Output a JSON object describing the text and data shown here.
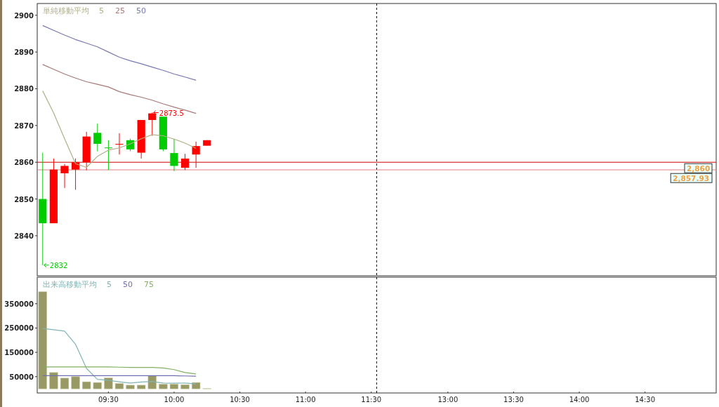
{
  "chart_data": [
    {
      "type": "candlestick",
      "legend_title": "単純移動平均",
      "legend": "top left",
      "categories": [
        null,
        null,
        null,
        null,
        null,
        null,
        null,
        null,
        null,
        null,
        null,
        null,
        null,
        null,
        null,
        null,
        null,
        null,
        null,
        null,
        null,
        null,
        null,
        null,
        null,
        null,
        null,
        null,
        null,
        null,
        null,
        null,
        null,
        null,
        null,
        null,
        null,
        null,
        null,
        null,
        null,
        null,
        null,
        null,
        null,
        null,
        null,
        null,
        null,
        null,
        null,
        null,
        null,
        null,
        null,
        null,
        null,
        null,
        null,
        null,
        null,
        null
      ],
      "ohlc": [
        [
          2850,
          2862.6,
          2832,
          2843.4
        ],
        [
          2843.4,
          2861,
          2843.4,
          2858
        ],
        [
          2857,
          2859.5,
          2853,
          2859
        ],
        [
          2858,
          2861,
          2852.5,
          2860
        ],
        [
          2860,
          2868.3,
          2857.8,
          2867
        ],
        [
          2868,
          2870.5,
          2863,
          2865
        ],
        [
          2864,
          2866,
          2857.9,
          2864
        ],
        [
          2864.8,
          2867.9,
          2862.1,
          2865
        ],
        [
          2866,
          2866.4,
          2863,
          2863.5
        ],
        [
          2862.6,
          2871.5,
          2861,
          2871.5
        ],
        [
          2871.5,
          2873.5,
          2867.2,
          2873.3
        ],
        [
          2872.4,
          2872.4,
          2863,
          2863.5
        ],
        [
          2862.5,
          2866.4,
          2857.6,
          2859
        ],
        [
          2858.5,
          2862.3,
          2857.9,
          2861
        ],
        [
          2862.1,
          2865.6,
          2858.5,
          2864.4
        ],
        [
          2864.5,
          2866,
          2864.5,
          2866
        ],
        null,
        null,
        null,
        null,
        null,
        null,
        null,
        null,
        null,
        null,
        null,
        null,
        null,
        null,
        null,
        null,
        null,
        null,
        null,
        null,
        null,
        null,
        null,
        null,
        null,
        null,
        null,
        null,
        null,
        null,
        null,
        null,
        null,
        null,
        null,
        null,
        null,
        null,
        null,
        null,
        null,
        null,
        null,
        null,
        null,
        null
      ],
      "colors": [
        "#00cc00",
        "#ff0000",
        "#ff0000",
        "#ff0000",
        "#ff0000",
        "#00cc00",
        "#00cc00",
        "#ff0000",
        "#00cc00",
        "#ff0000",
        "#ff0000",
        "#00cc00",
        "#00cc00",
        "#ff0000",
        "#ff0000",
        "#ff0000",
        null,
        null,
        null,
        null,
        null,
        null,
        null,
        null,
        null,
        null,
        null,
        null,
        null,
        null,
        null,
        null,
        null,
        null,
        null,
        null,
        null,
        null,
        null,
        null,
        null,
        null,
        null,
        null,
        null,
        null,
        null,
        null,
        null,
        null,
        null,
        null,
        null,
        null,
        null,
        null,
        null,
        null,
        null,
        null,
        null,
        null
      ],
      "series": [
        {
          "name": "5",
          "type": "line",
          "color": "#b0b088",
          "values": [
            2879.4,
            2873.4,
            2866.4,
            2859.6,
            2858.6,
            2861.6,
            2863.3,
            2863.9,
            2865,
            2866.4,
            2867.5,
            2867.2,
            2866.3,
            2865.2,
            2863.8,
            null,
            null,
            null,
            null,
            null,
            null,
            null,
            null,
            null,
            null,
            null,
            null,
            null,
            null,
            null,
            null,
            null,
            null,
            null,
            null,
            null,
            null,
            null,
            null,
            null,
            null,
            null,
            null,
            null,
            null,
            null,
            null,
            null,
            null,
            null,
            null,
            null,
            null,
            null,
            null,
            null,
            null,
            null,
            null,
            null,
            null,
            null
          ]
        },
        {
          "name": "25",
          "type": "line",
          "color": "#a87878",
          "values": [
            2886.6,
            2885.3,
            2884,
            2882.9,
            2881.9,
            2881.2,
            2880.5,
            2879.2,
            2878.4,
            2877.7,
            2876.9,
            2875.9,
            2875,
            2874.2,
            2873.3,
            null,
            null,
            null,
            null,
            null,
            null,
            null,
            null,
            null,
            null,
            null,
            null,
            null,
            null,
            null,
            null,
            null,
            null,
            null,
            null,
            null,
            null,
            null,
            null,
            null,
            null,
            null,
            null,
            null,
            null,
            null,
            null,
            null,
            null,
            null,
            null,
            null,
            null,
            null,
            null,
            null,
            null,
            null,
            null,
            null,
            null,
            null
          ]
        },
        {
          "name": "50",
          "type": "line",
          "color": "#7878b0",
          "values": [
            2897.2,
            2895.9,
            2894.6,
            2893.4,
            2892.4,
            2891.4,
            2890,
            2888.6,
            2887.6,
            2886.8,
            2885.9,
            2885,
            2884,
            2883.2,
            2882.3,
            null,
            null,
            null,
            null,
            null,
            null,
            null,
            null,
            null,
            null,
            null,
            null,
            null,
            null,
            null,
            null,
            null,
            null,
            null,
            null,
            null,
            null,
            null,
            null,
            null,
            null,
            null,
            null,
            null,
            null,
            null,
            null,
            null,
            null,
            null,
            null,
            null,
            null,
            null,
            null,
            null,
            null,
            null,
            null,
            null,
            null,
            null
          ]
        }
      ],
      "ylim": [
        2829.1,
        2903.2
      ],
      "yticks": [
        2840,
        2850,
        2860,
        2870,
        2880,
        2890,
        2900
      ],
      "ref_lines": [
        {
          "axis": "y",
          "value": 2860,
          "label": "2,860",
          "color": "#cc0000"
        },
        {
          "axis": "y",
          "value": 2857.93,
          "label": "2,857.93",
          "color": "#e08080"
        }
      ],
      "annotations": [
        "2873.5",
        "2832"
      ]
    },
    {
      "type": "bar",
      "legend_title": "出来高移動平均",
      "legend": "top left",
      "categories": [
        null,
        null,
        null,
        null,
        null,
        null,
        "09:30",
        null,
        null,
        null,
        null,
        null,
        "10:00",
        null,
        null,
        null,
        null,
        null,
        "10:30",
        null,
        null,
        null,
        null,
        null,
        "11:00",
        null,
        null,
        null,
        null,
        null,
        "11:30",
        null,
        null,
        null,
        null,
        null,
        null,
        "13:00",
        null,
        null,
        null,
        null,
        null,
        "13:30",
        null,
        null,
        null,
        null,
        null,
        "14:00",
        null,
        null,
        null,
        null,
        null,
        "14:30",
        null,
        null,
        null,
        null,
        null,
        null
      ],
      "series": [
        {
          "type": "bar",
          "color": "#999966",
          "values": [
            399000,
            67000,
            44000,
            50000,
            29000,
            26000,
            45000,
            22000,
            15000,
            15000,
            53000,
            19000,
            19000,
            17000,
            26000,
            1000,
            null,
            null,
            null,
            null,
            null,
            null,
            null,
            null,
            null,
            null,
            null,
            null,
            null,
            null,
            null,
            null,
            null,
            null,
            null,
            null,
            null,
            null,
            null,
            null,
            null,
            null,
            null,
            null,
            null,
            null,
            null,
            null,
            null,
            null,
            null,
            null,
            null,
            null,
            null,
            null,
            null,
            null,
            null,
            null,
            null,
            null
          ]
        },
        {
          "name": "5",
          "type": "line",
          "color": "#80b4b4",
          "values": [
            248000,
            243000,
            237000,
            183000,
            84000,
            39000,
            35000,
            29000,
            24000,
            28000,
            30000,
            24000,
            23000,
            24000,
            20000,
            null,
            null,
            null,
            null,
            null,
            null,
            null,
            null,
            null,
            null,
            null,
            null,
            null,
            null,
            null,
            null,
            null,
            null,
            null,
            null,
            null,
            null,
            null,
            null,
            null,
            null,
            null,
            null,
            null,
            null,
            null,
            null,
            null,
            null,
            null,
            null,
            null,
            null,
            null,
            null,
            null,
            null,
            null,
            null,
            null,
            null,
            null
          ]
        },
        {
          "name": "50",
          "type": "line",
          "color": "#7070b0",
          "values": [
            54000,
            54000,
            54000,
            54000,
            54000,
            54000,
            54000,
            54000,
            54000,
            54000,
            54000,
            54000,
            54000,
            53000,
            52000,
            null,
            null,
            null,
            null,
            null,
            null,
            null,
            null,
            null,
            null,
            null,
            null,
            null,
            null,
            null,
            null,
            null,
            null,
            null,
            null,
            null,
            null,
            null,
            null,
            null,
            null,
            null,
            null,
            null,
            null,
            null,
            null,
            null,
            null,
            null,
            null,
            null,
            null,
            null,
            null,
            null,
            null,
            null,
            null,
            null,
            null,
            null
          ]
        },
        {
          "name": "75",
          "type": "line",
          "color": "#80b060",
          "values": [
            90000,
            90000,
            90000,
            90000,
            90000,
            90000,
            90000,
            89000,
            88000,
            88000,
            88000,
            86000,
            79000,
            67000,
            61000,
            null,
            null,
            null,
            null,
            null,
            null,
            null,
            null,
            null,
            null,
            null,
            null,
            null,
            null,
            null,
            null,
            null,
            null,
            null,
            null,
            null,
            null,
            null,
            null,
            null,
            null,
            null,
            null,
            null,
            null,
            null,
            null,
            null,
            null,
            null,
            null,
            null,
            null,
            null,
            null,
            null,
            null,
            null,
            null,
            null,
            null,
            null
          ]
        }
      ],
      "ylim": [
        -17000,
        459000
      ],
      "yticks": [
        50000,
        150000,
        250000,
        350000
      ]
    }
  ]
}
